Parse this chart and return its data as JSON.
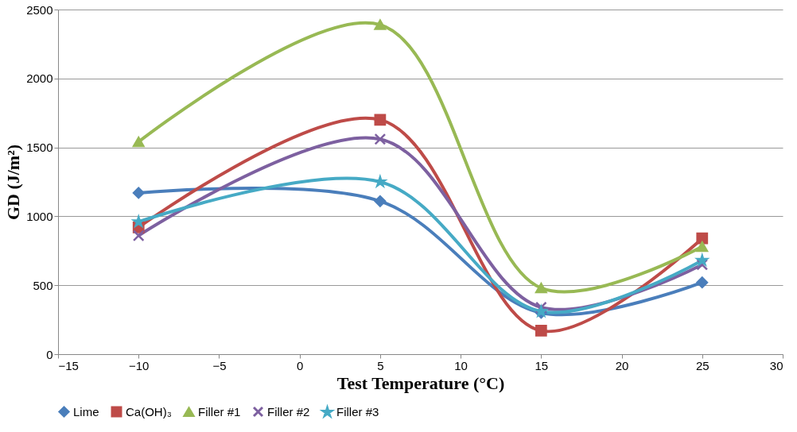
{
  "chart_data": {
    "type": "line",
    "xlabel": "Test Temperature (°C)",
    "ylabel": "GD (J/m²)",
    "x": [
      -10,
      5,
      15,
      25
    ],
    "series": [
      {
        "name": "Lime",
        "color": "#4a7ebb",
        "marker": "diamond",
        "values": [
          1170,
          1110,
          300,
          520
        ]
      },
      {
        "name": "Ca(OH)₃",
        "color": "#be4b48",
        "marker": "square",
        "values": [
          920,
          1700,
          170,
          840
        ]
      },
      {
        "name": "Filler #1",
        "color": "#98b954",
        "marker": "triangle",
        "values": [
          1540,
          2390,
          480,
          780
        ]
      },
      {
        "name": "Filler #2",
        "color": "#7d60a0",
        "marker": "cross",
        "values": [
          860,
          1560,
          340,
          650
        ]
      },
      {
        "name": "Filler #3",
        "color": "#46aac5",
        "marker": "star",
        "values": [
          960,
          1250,
          310,
          680
        ]
      }
    ],
    "xlim": [
      -15,
      30
    ],
    "xticks": [
      -15,
      -10,
      -5,
      0,
      5,
      10,
      15,
      20,
      25,
      30
    ],
    "ylim": [
      0,
      2500
    ],
    "yticks": [
      0,
      500,
      1000,
      1500,
      2000,
      2500
    ],
    "grid": "y",
    "legend": "bottom",
    "line_style": "solid"
  }
}
